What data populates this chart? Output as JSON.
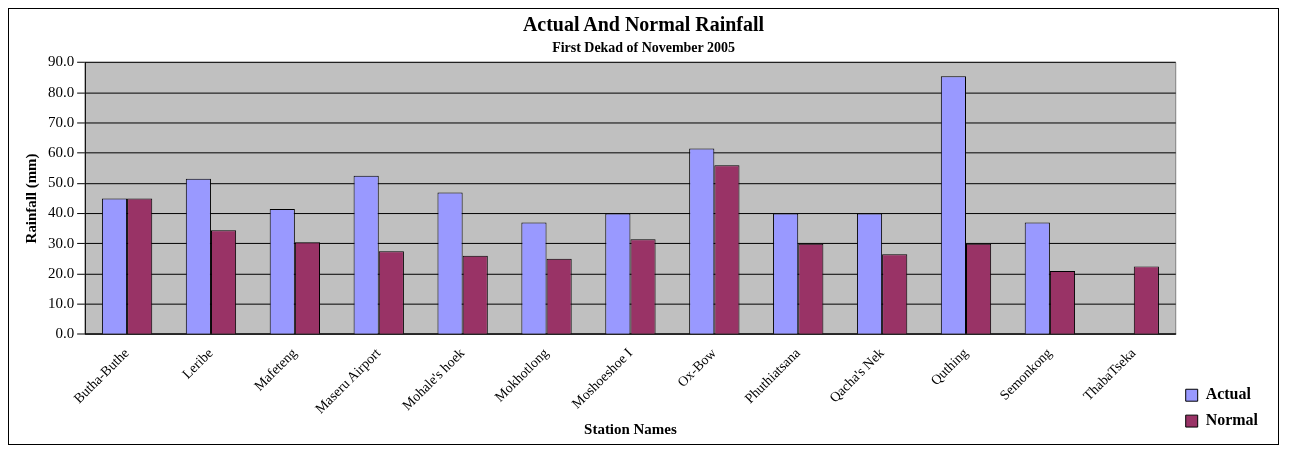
{
  "chart_data": {
    "type": "bar",
    "title": "Actual And Normal Rainfall",
    "subtitle": "First Dekad of November 2005",
    "xlabel": "Station Names",
    "ylabel": "Rainfall (mm)",
    "categories": [
      "Butha-Buthe",
      "Leribe",
      "Mafeteng",
      "Maseru Airport",
      "Mohale's hoek",
      "Mokhotlong",
      "Moshoeshoe I",
      "Ox-Bow",
      "Phuthiatsana",
      "Qacha's Nek",
      "Quthing",
      "Semonkong",
      "ThabaTseka"
    ],
    "series": [
      {
        "name": "Actual",
        "color": "#9999ff",
        "values": [
          45,
          51.5,
          41.5,
          52.5,
          47,
          37,
          40,
          61.5,
          40,
          40,
          85.5,
          37,
          null
        ]
      },
      {
        "name": "Normal",
        "color": "#993366",
        "values": [
          45,
          34.5,
          30.5,
          27.5,
          26,
          25,
          31.5,
          56,
          30,
          26.5,
          30,
          21,
          22.5
        ]
      }
    ],
    "ylim": [
      0,
      90
    ],
    "yticks": [
      {
        "value": 0,
        "label": "0.0"
      },
      {
        "value": 10,
        "label": "10.0"
      },
      {
        "value": 20,
        "label": "20.0"
      },
      {
        "value": 30,
        "label": "30.0"
      },
      {
        "value": 40,
        "label": "40.0"
      },
      {
        "value": 50,
        "label": "50.0"
      },
      {
        "value": 60,
        "label": "60.0"
      },
      {
        "value": 70,
        "label": "70.0"
      },
      {
        "value": 80,
        "label": "80.0"
      },
      {
        "value": 90,
        "label": "90.0"
      }
    ],
    "grid": "y",
    "legend": "bottom right"
  }
}
